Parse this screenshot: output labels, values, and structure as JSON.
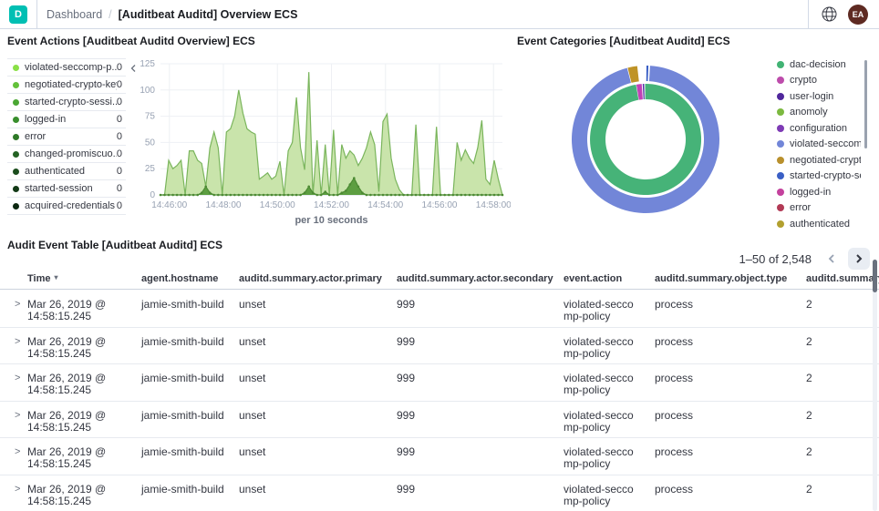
{
  "header": {
    "logo": "D",
    "logo_color": "#00bfb3",
    "breadcrumb": "Dashboard",
    "separator": "/",
    "title": "[Auditbeat Auditd] Overview ECS",
    "avatar_initials": "EA",
    "avatar_color": "#5e2a22"
  },
  "event_actions_panel": {
    "title": "Event Actions [Auditbeat Auditd Overview] ECS",
    "legend": [
      {
        "label": "violated-seccomp-p...",
        "value": "0",
        "color": "#8ae046"
      },
      {
        "label": "negotiated-crypto-key",
        "value": "0",
        "color": "#63c13a"
      },
      {
        "label": "started-crypto-sessi...",
        "value": "0",
        "color": "#4aa733"
      },
      {
        "label": "logged-in",
        "value": "0",
        "color": "#398e2d"
      },
      {
        "label": "error",
        "value": "0",
        "color": "#2e7928"
      },
      {
        "label": "changed-promiscuo...",
        "value": "0",
        "color": "#246223"
      },
      {
        "label": "authenticated",
        "value": "0",
        "color": "#1b4d1d"
      },
      {
        "label": "started-session",
        "value": "0",
        "color": "#133a17"
      },
      {
        "label": "acquired-credentials",
        "value": "0",
        "color": "#0c2811"
      }
    ]
  },
  "event_categories_panel": {
    "title": "Event Categories [Auditbeat Auditd] ECS",
    "legend": [
      {
        "label": "dac-decision",
        "color": "#41b374"
      },
      {
        "label": "crypto",
        "color": "#bd4cab"
      },
      {
        "label": "user-login",
        "color": "#50279c"
      },
      {
        "label": "anomoly",
        "color": "#7cb940"
      },
      {
        "label": "configuration",
        "color": "#7e3bb5"
      },
      {
        "label": "violated-seccomp...",
        "color": "#7286d8"
      },
      {
        "label": "negotiated-crypto...",
        "color": "#b9902d"
      },
      {
        "label": "started-crypto-se...",
        "color": "#3a5fc5"
      },
      {
        "label": "logged-in",
        "color": "#c4419d"
      },
      {
        "label": "error",
        "color": "#b23a55"
      },
      {
        "label": "authenticated",
        "color": "#b2a02f"
      }
    ]
  },
  "chart_data": [
    {
      "type": "area",
      "title": "Event Actions [Auditbeat Auditd Overview] ECS",
      "xlabel": "per 10 seconds",
      "ylabel": "",
      "ylim": [
        0,
        125
      ],
      "y_ticks": [
        0,
        25,
        50,
        75,
        100,
        125
      ],
      "grid": true,
      "x_ticks": [
        {
          "label": "14:46:00",
          "pos": 0.026
        },
        {
          "label": "14:48:00",
          "pos": 0.184
        },
        {
          "label": "14:50:00",
          "pos": 0.342
        },
        {
          "label": "14:52:00",
          "pos": 0.5
        },
        {
          "label": "14:54:00",
          "pos": 0.658
        },
        {
          "label": "14:56:00",
          "pos": 0.816
        },
        {
          "label": "14:58:00",
          "pos": 0.974
        }
      ],
      "series": [
        {
          "name": "violated-seccomp-policy",
          "color": "#7ab55c",
          "fill": "#c9e4ab",
          "values": [
            0,
            0,
            33,
            25,
            28,
            33,
            0,
            42,
            42,
            33,
            30,
            8,
            45,
            60,
            45,
            0,
            60,
            63,
            75,
            100,
            78,
            63,
            60,
            58,
            15,
            18,
            21,
            15,
            18,
            32,
            0,
            42,
            50,
            93,
            45,
            24,
            117,
            0,
            52,
            0,
            48,
            0,
            62,
            0,
            48,
            35,
            42,
            38,
            28,
            35,
            45,
            60,
            48,
            3,
            70,
            77,
            35,
            15,
            5,
            0,
            0,
            0,
            67,
            0,
            0,
            0,
            0,
            65,
            0,
            0,
            0,
            0,
            50,
            33,
            43,
            35,
            30,
            45,
            71,
            15,
            10,
            33,
            15,
            0
          ]
        },
        {
          "name": "error",
          "color": "#4c8a33",
          "fill": "#5d9e41",
          "markers": true,
          "values": [
            0,
            0,
            0,
            0,
            0,
            0,
            0,
            0,
            0,
            0,
            2,
            8,
            2,
            0,
            0,
            0,
            0,
            0,
            0,
            0,
            0,
            0,
            0,
            0,
            0,
            0,
            0,
            0,
            0,
            0,
            0,
            0,
            0,
            0,
            0,
            2,
            8,
            2,
            0,
            0,
            3,
            0,
            0,
            0,
            2,
            4,
            10,
            16,
            8,
            2,
            0,
            0,
            0,
            0,
            0,
            0,
            0,
            0,
            0,
            0,
            0,
            0,
            0,
            0,
            0,
            0,
            0,
            0,
            0,
            0,
            0,
            0,
            0,
            0,
            0,
            0,
            0,
            0,
            0,
            0,
            0,
            0,
            0,
            0
          ]
        }
      ]
    },
    {
      "type": "donut",
      "title": "Event Categories [Auditbeat Auditd] ECS",
      "legend_position": "right",
      "slices_summary": {
        "outer_ring": [
          {
            "label": "violated-seccomp-policy",
            "pct": 95.0
          },
          {
            "label": "negotiated-crypto-key",
            "pct": 2.1
          },
          {
            "label": "started-crypto-session",
            "pct": 0.4
          }
        ],
        "inner_ring": [
          {
            "label": "dac-decision",
            "pct": 97.4
          },
          {
            "label": "crypto",
            "pct": 1.5
          },
          {
            "label": "user-login",
            "pct": 0.4
          }
        ]
      },
      "rings": [
        {
          "r_inner": 64,
          "r_outer": 81,
          "slices": [
            {
              "label": "violated-seccomp-policy",
              "color": "#7286d8",
              "start": 3.5,
              "sweep": 342
            },
            {
              "label": "negotiated-crypto-key",
              "color": "#bf9326",
              "start": -14,
              "sweep": 7.5
            },
            {
              "label": "started-crypto-session",
              "color": "#3a5fc5",
              "start": 0.7,
              "sweep": 1.5
            }
          ]
        },
        {
          "r_inner": 44,
          "r_outer": 61,
          "slices": [
            {
              "label": "dac-decision",
              "color": "#46b378",
              "start": -0.5,
              "sweep": 350.5
            },
            {
              "label": "crypto",
              "color": "#c241b5",
              "start": -9.5,
              "sweep": 5.5
            },
            {
              "label": "user-login",
              "color": "#5330a8",
              "start": -3,
              "sweep": 1.5
            }
          ]
        }
      ]
    }
  ],
  "table_panel": {
    "title": "Audit Event Table [Auditbeat Auditd] ECS",
    "pagination": {
      "range_label": "1–50 of 2,548"
    },
    "columns": [
      "Time",
      "agent.hostname",
      "auditd.summary.actor.primary",
      "auditd.summary.actor.secondary",
      "event.action",
      "auditd.summary.object.type",
      "auditd.summary"
    ],
    "rows": [
      {
        "time": "Mar 26, 2019 @ 14:58:15.245",
        "hostname": "jamie-smith-build",
        "actor_primary": "unset",
        "actor_secondary": "999",
        "action": "violated-seccomp-policy",
        "object_type": "process",
        "summary_count": "2"
      },
      {
        "time": "Mar 26, 2019 @ 14:58:15.245",
        "hostname": "jamie-smith-build",
        "actor_primary": "unset",
        "actor_secondary": "999",
        "action": "violated-seccomp-policy",
        "object_type": "process",
        "summary_count": "2"
      },
      {
        "time": "Mar 26, 2019 @ 14:58:15.245",
        "hostname": "jamie-smith-build",
        "actor_primary": "unset",
        "actor_secondary": "999",
        "action": "violated-seccomp-policy",
        "object_type": "process",
        "summary_count": "2"
      },
      {
        "time": "Mar 26, 2019 @ 14:58:15.245",
        "hostname": "jamie-smith-build",
        "actor_primary": "unset",
        "actor_secondary": "999",
        "action": "violated-seccomp-policy",
        "object_type": "process",
        "summary_count": "2"
      },
      {
        "time": "Mar 26, 2019 @ 14:58:15.245",
        "hostname": "jamie-smith-build",
        "actor_primary": "unset",
        "actor_secondary": "999",
        "action": "violated-seccomp-policy",
        "object_type": "process",
        "summary_count": "2"
      },
      {
        "time": "Mar 26, 2019 @ 14:58:15.245",
        "hostname": "jamie-smith-build",
        "actor_primary": "unset",
        "actor_secondary": "999",
        "action": "violated-seccomp-policy",
        "object_type": "process",
        "summary_count": "2"
      }
    ]
  }
}
